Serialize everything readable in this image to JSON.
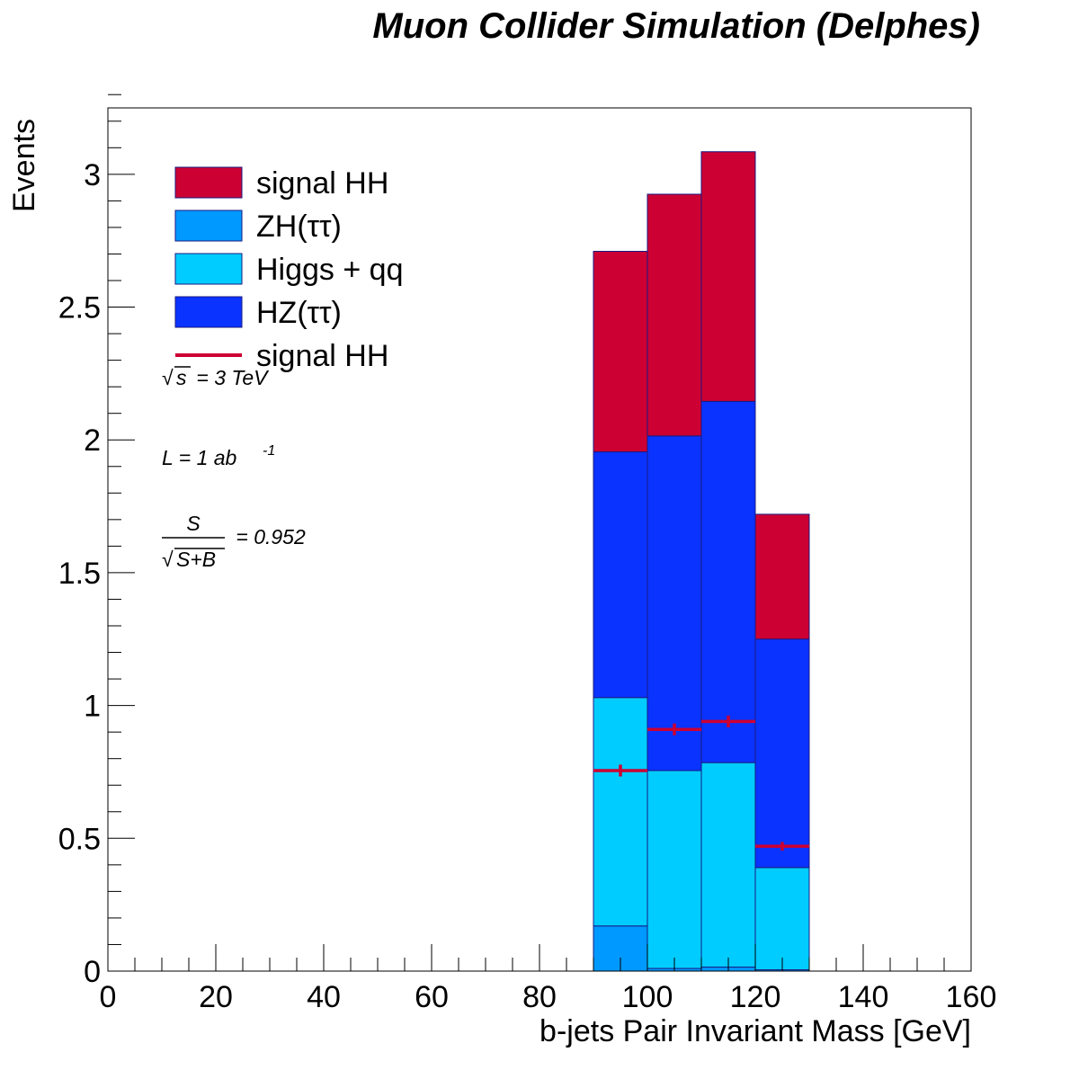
{
  "chart_data": {
    "type": "bar",
    "stacked": true,
    "title": "Muon Collider Simulation (Delphes)",
    "xlabel": "b-jets Pair Invariant Mass [GeV]",
    "ylabel": "Events",
    "xlim": [
      0,
      160
    ],
    "ylim": [
      0,
      3.25
    ],
    "x_ticks": [
      0,
      20,
      40,
      60,
      80,
      100,
      120,
      140,
      160
    ],
    "x_tick_labels": [
      "0",
      "20",
      "40",
      "60",
      "80",
      "100",
      "120",
      "140",
      "160"
    ],
    "y_ticks": [
      0,
      0.5,
      1,
      1.5,
      2,
      2.5,
      3
    ],
    "y_tick_labels": [
      "0",
      "0.5",
      "1",
      "1.5",
      "2",
      "2.5",
      "3"
    ],
    "bin_edges": [
      90,
      100,
      110,
      120,
      130
    ],
    "series": [
      {
        "name": "ZH(ττ)",
        "color": "#0099ff",
        "values": [
          0.17,
          0.01,
          0.015,
          0.005
        ]
      },
      {
        "name": "Higgs + qq",
        "color": "#00ccff",
        "values": [
          0.86,
          0.745,
          0.77,
          0.385
        ]
      },
      {
        "name": "HZ(ττ)",
        "color": "#0a33ff",
        "values": [
          0.925,
          1.26,
          1.36,
          0.86
        ]
      },
      {
        "name": "signal HH",
        "color": "#cc0033",
        "values": [
          0.755,
          0.91,
          0.94,
          0.47
        ]
      }
    ],
    "overlay": {
      "name": "signal HH",
      "type": "errorbar",
      "color": "#cc0033",
      "x": [
        95,
        105,
        115,
        125
      ],
      "values": [
        0.755,
        0.91,
        0.94,
        0.47
      ],
      "errors": [
        0.012,
        0.012,
        0.012,
        0.006
      ]
    },
    "legend": {
      "position": "top-left",
      "entries": [
        {
          "label": "signal HH",
          "kind": "box",
          "color": "#cc0033"
        },
        {
          "label": "ZH(ττ)",
          "kind": "box",
          "color": "#0099ff"
        },
        {
          "label": "Higgs + qq",
          "kind": "box",
          "color": "#00ccff"
        },
        {
          "label": "HZ(ττ)",
          "kind": "box",
          "color": "#0a33ff"
        },
        {
          "label": "signal HH",
          "kind": "line",
          "color": "#cc0033"
        }
      ]
    },
    "annotations": {
      "sqrt_s": {
        "symbol": "√",
        "var": "s",
        "rest": " = 3 TeV"
      },
      "lumi": {
        "text": "L = 1 ab",
        "sup": "-1"
      },
      "significance": {
        "numerator": "S",
        "root": "√",
        "denominator": "S+B",
        "rest": " = 0.952"
      }
    },
    "grid": false
  }
}
